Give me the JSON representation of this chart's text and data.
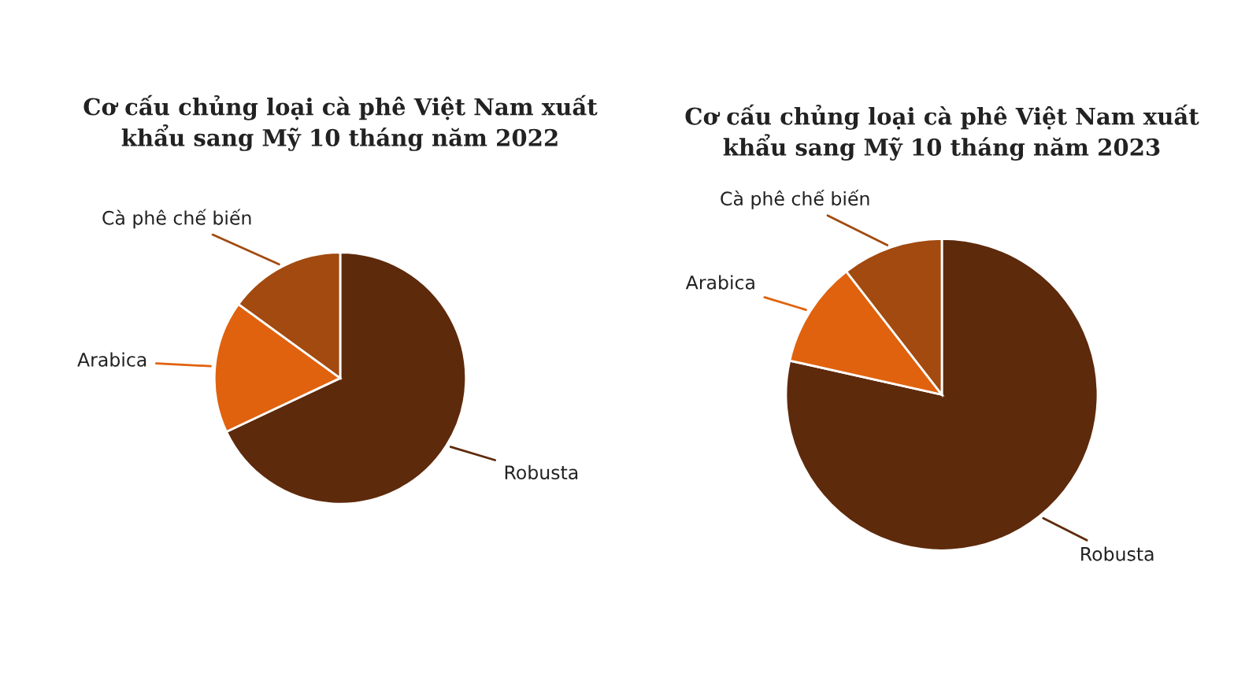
{
  "chart_data": [
    {
      "type": "pie",
      "title": "Cơ cấu chủng loại cà phê Việt Nam xuất\nkhẩu sang Mỹ 10 tháng năm 2022",
      "categories": [
        "Robusta",
        "Arabica",
        "Cà phê chế biến"
      ],
      "values": [
        68,
        17,
        15
      ],
      "colors": [
        "#5e2a0c",
        "#e0620e",
        "#a24a0f"
      ]
    },
    {
      "type": "pie",
      "title": "Cơ cấu chủng loại cà phê Việt Nam xuất\nkhẩu sang Mỹ 10 tháng năm 2023",
      "categories": [
        "Robusta",
        "Arabica",
        "Cà phê chế biến"
      ],
      "values": [
        78.5,
        11,
        10.5
      ],
      "colors": [
        "#5e2a0c",
        "#e0620e",
        "#a24a0f"
      ]
    }
  ]
}
